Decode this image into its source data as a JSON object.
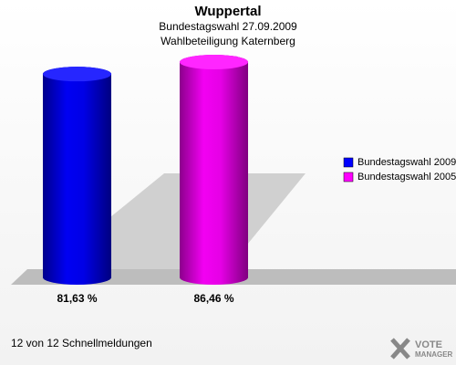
{
  "chart_data": {
    "type": "bar",
    "title": "Wuppertal",
    "subtitle": [
      "Bundestagswahl 27.09.2009",
      "Wahlbeteiligung Katernberg"
    ],
    "series": [
      {
        "name": "Bundestagswahl 2009",
        "color": "#0000ff",
        "values": [
          81.63
        ],
        "value_labels": [
          "81,63 %"
        ]
      },
      {
        "name": "Bundestagswahl 2005",
        "color": "#ff00ff",
        "values": [
          86.46
        ],
        "value_labels": [
          "86,46 %"
        ]
      }
    ],
    "legend": "right",
    "footnote": "12 von 12 Schnellmeldungen",
    "logo": [
      "VOTE",
      "MANAGER"
    ]
  }
}
